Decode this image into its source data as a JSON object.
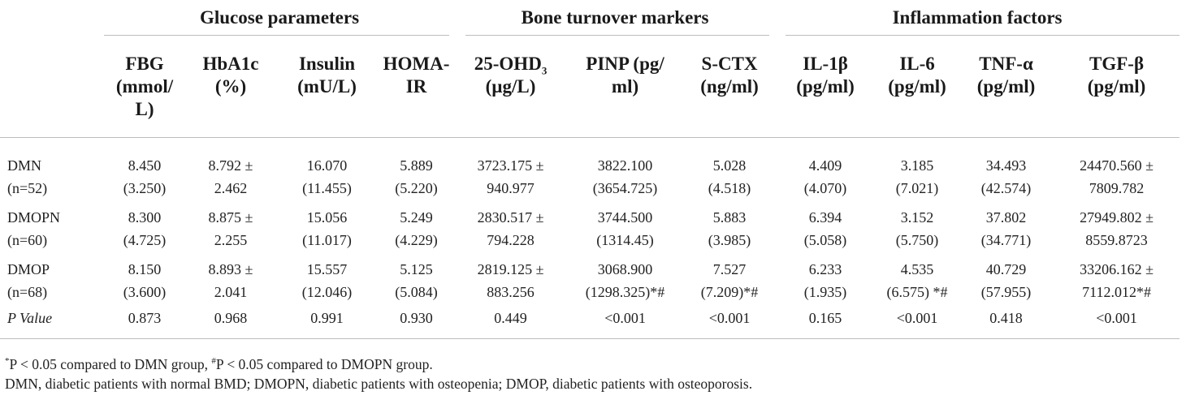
{
  "groups": {
    "glucose": "Glucose parameters",
    "bone": "Bone turnover markers",
    "inflammation": "Inflammation factors"
  },
  "columns": {
    "fbg": [
      "FBG",
      "(mmol/",
      "L)"
    ],
    "hba1c": [
      "HbA1c",
      "(%)"
    ],
    "insulin": [
      "Insulin",
      "(mU/L)"
    ],
    "homa": [
      "HOMA-",
      "IR"
    ],
    "ohd_main": "25-OHD",
    "ohd_sub": "3",
    "ohd_unit": "(µg/L)",
    "pinp": [
      "PINP (pg/",
      "ml)"
    ],
    "sctx": [
      "S-CTX",
      "(ng/ml)"
    ],
    "il1b": [
      "IL-1β",
      "(pg/ml)"
    ],
    "il6": [
      "IL-6",
      "(pg/ml)"
    ],
    "tnfa": [
      "TNF-α",
      "(pg/ml)"
    ],
    "tgfb": [
      "TGF-β",
      "(pg/ml)"
    ]
  },
  "rows": [
    {
      "label": [
        "DMN",
        "(n=52)"
      ],
      "cells": [
        [
          "8.450",
          "(3.250)"
        ],
        [
          "8.792 ±",
          "2.462"
        ],
        [
          "16.070",
          "(11.455)"
        ],
        [
          "5.889",
          "(5.220)"
        ],
        [
          "3723.175 ±",
          "940.977"
        ],
        [
          "3822.100",
          "(3654.725)"
        ],
        [
          "5.028",
          "(4.518)"
        ],
        [
          "4.409",
          "(4.070)"
        ],
        [
          "3.185",
          "(7.021)"
        ],
        [
          "34.493",
          "(42.574)"
        ],
        [
          "24470.560 ±",
          "7809.782"
        ]
      ]
    },
    {
      "label": [
        "DMOPN",
        "(n=60)"
      ],
      "cells": [
        [
          "8.300",
          "(4.725)"
        ],
        [
          "8.875 ±",
          "2.255"
        ],
        [
          "15.056",
          "(11.017)"
        ],
        [
          "5.249",
          "(4.229)"
        ],
        [
          "2830.517 ±",
          "794.228"
        ],
        [
          "3744.500",
          "(1314.45)"
        ],
        [
          "5.883",
          "(3.985)"
        ],
        [
          "6.394",
          "(5.058)"
        ],
        [
          "3.152",
          "(5.750)"
        ],
        [
          "37.802",
          "(34.771)"
        ],
        [
          "27949.802 ±",
          "8559.8723"
        ]
      ]
    },
    {
      "label": [
        "DMOP",
        "(n=68)"
      ],
      "cells": [
        [
          "8.150",
          "(3.600)"
        ],
        [
          "8.893 ±",
          "2.041"
        ],
        [
          "15.557",
          "(12.046)"
        ],
        [
          "5.125",
          "(5.084)"
        ],
        [
          "2819.125 ±",
          "883.256"
        ],
        [
          "3068.900",
          "(1298.325)*#"
        ],
        [
          "7.527",
          "(7.209)*#"
        ],
        [
          "6.233",
          "(1.935)"
        ],
        [
          "4.535",
          "(6.575) *#"
        ],
        [
          "40.729",
          "(57.955)"
        ],
        [
          "33206.162 ±",
          "7112.012*#"
        ]
      ]
    }
  ],
  "pvalue": {
    "label": "P Value",
    "values": [
      "0.873",
      "0.968",
      "0.991",
      "0.930",
      "0.449",
      "<0.001",
      "<0.001",
      "0.165",
      "<0.001",
      "0.418",
      "<0.001"
    ]
  },
  "footnotes": {
    "line1_star": "*",
    "line1_a": "P < 0.05 compared to DMN group, ",
    "line1_hash": "#",
    "line1_b": "P < 0.05 compared to DMOPN group.",
    "line2": "DMN, diabetic patients with normal BMD; DMOPN, diabetic patients with osteopenia; DMOP, diabetic patients with osteoporosis."
  }
}
